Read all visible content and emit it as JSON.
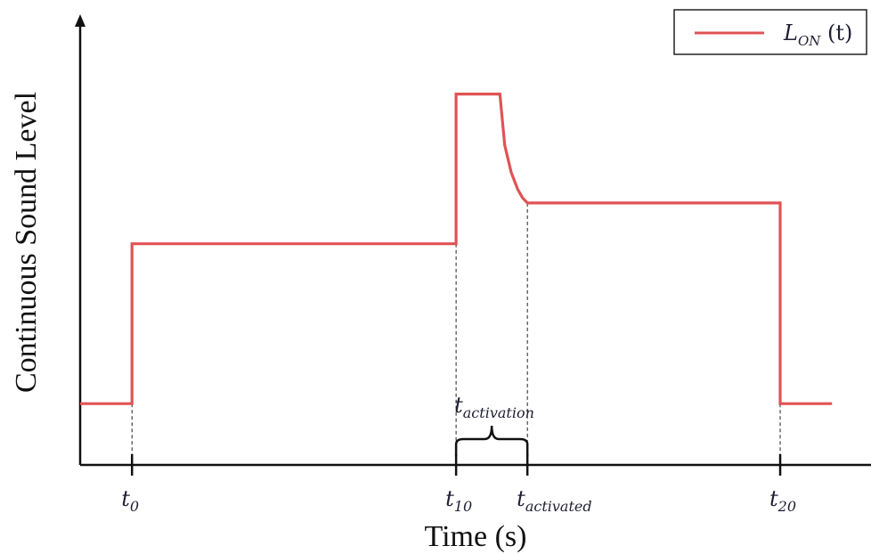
{
  "chart_data": {
    "type": "line",
    "title": "",
    "xlabel": "Time (s)",
    "ylabel": "Continuous Sound Level",
    "legend": {
      "placement": "top-right",
      "entries": [
        {
          "main": "L",
          "sub": "ON",
          "suffix": " (t)",
          "color": "#e05355"
        }
      ]
    },
    "grid": false,
    "x_ticks": [
      {
        "key": "t0",
        "main": "t",
        "sub": "0",
        "x": 0
      },
      {
        "key": "t10",
        "main": "t",
        "sub": "10",
        "x": 10
      },
      {
        "key": "tactivated",
        "main": "t",
        "sub": "activated",
        "x": 12.2
      },
      {
        "key": "t20",
        "main": "t",
        "sub": "20",
        "x": 20
      }
    ],
    "annotation": {
      "main": "t",
      "sub": "activation",
      "from": 10,
      "to": 12.2
    },
    "xlim": [
      -1.6,
      22.5
    ],
    "ylim": [
      0,
      10
    ],
    "series": [
      {
        "name": "L_ON(t)",
        "color": "#e05355",
        "x": [
          -1.6,
          0,
          0,
          10,
          10,
          11.35,
          11.5,
          11.7,
          11.9,
          12.05,
          12.2,
          20,
          20,
          21.6
        ],
        "y": [
          1.8,
          1.8,
          6.5,
          6.5,
          10.9,
          10.9,
          9.4,
          8.6,
          8.1,
          7.85,
          7.7,
          7.7,
          1.8,
          1.8
        ]
      }
    ]
  }
}
